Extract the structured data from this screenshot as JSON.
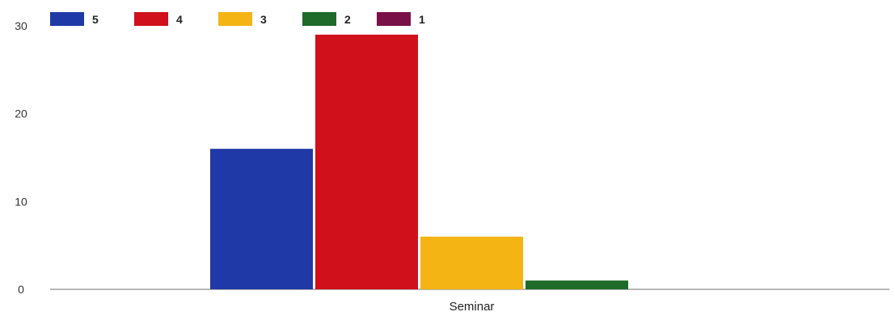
{
  "chart_data": {
    "type": "bar",
    "categories": [
      "Seminar"
    ],
    "series": [
      {
        "name": "5",
        "values": [
          16
        ],
        "color": "#1f3aa6"
      },
      {
        "name": "4",
        "values": [
          29
        ],
        "color": "#d0101a"
      },
      {
        "name": "3",
        "values": [
          6
        ],
        "color": "#f3b414"
      },
      {
        "name": "2",
        "values": [
          1
        ],
        "color": "#1f6b2a"
      },
      {
        "name": "1",
        "values": [
          0
        ],
        "color": "#7a1048"
      }
    ],
    "yticks": [
      "0",
      "10",
      "20",
      "30"
    ],
    "ylim": [
      0,
      30
    ],
    "legend": "top-left",
    "grid": false,
    "title": "",
    "xlabel": "",
    "ylabel": ""
  }
}
